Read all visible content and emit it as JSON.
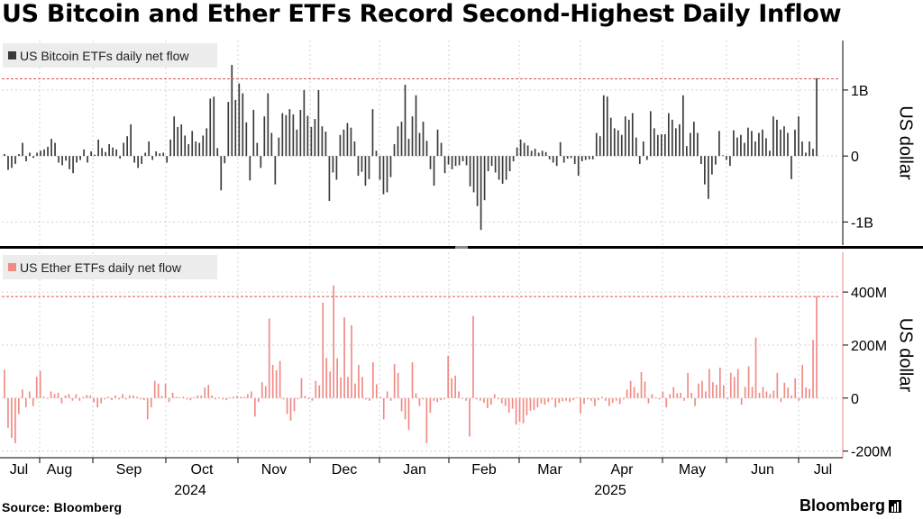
{
  "title": "US Bitcoin and Ether ETFs Record Second-Highest Daily Inflow",
  "source": "Source:  Bloomberg",
  "brand": "Bloomberg",
  "colors": {
    "btc": "#3a3a3a",
    "eth": "#f08a84",
    "ref_line": "#d9534f",
    "legend_bg": "#ececec",
    "grid": "#d0d0d0"
  },
  "chart_data": [
    {
      "type": "bar",
      "legend": "US Bitcoin ETFs daily net flow",
      "ylabel": "US dollar",
      "yticks": [
        {
          "v": 1.0,
          "label": "1B"
        },
        {
          "v": 0,
          "label": "0"
        },
        {
          "v": -1.0,
          "label": "-1B"
        }
      ],
      "ylim": [
        -1.35,
        1.75
      ],
      "unit": "billion USD",
      "reference_line": 1.17,
      "values": [
        0.03,
        -0.21,
        -0.18,
        -0.12,
        0.03,
        0.2,
        -0.08,
        0.05,
        -0.03,
        0.05,
        0.08,
        0.1,
        0.14,
        0.26,
        0.2,
        -0.1,
        -0.14,
        -0.07,
        -0.2,
        -0.26,
        -0.1,
        -0.06,
        0.1,
        -0.1,
        0.07,
        0.02,
        0.25,
        0.12,
        0.06,
        0.18,
        0.13,
        0.1,
        -0.04,
        0.2,
        0.3,
        0.48,
        -0.1,
        -0.18,
        -0.12,
        0.05,
        0.22,
        -0.06,
        0.07,
        0.04,
        0.05,
        -0.1,
        0.25,
        0.6,
        0.44,
        0.48,
        0.31,
        0.18,
        0.38,
        0.22,
        0.2,
        0.31,
        0.42,
        0.87,
        0.9,
        0.12,
        -0.52,
        -0.11,
        0.82,
        1.38,
        0.85,
        1.1,
        0.95,
        0.51,
        -0.37,
        0.7,
        0.2,
        -0.18,
        0.6,
        0.95,
        0.35,
        -0.43,
        0.28,
        0.65,
        0.62,
        0.71,
        0.63,
        0.4,
        0.7,
        1.0,
        0.61,
        0.44,
        0.56,
        1.0,
        0.45,
        0.37,
        -0.68,
        -0.25,
        -0.36,
        0.32,
        0.4,
        0.5,
        0.43,
        0.22,
        -0.3,
        -0.24,
        -0.45,
        -0.35,
        0.71,
        0.08,
        -0.36,
        -0.58,
        -0.55,
        -0.32,
        0.18,
        0.45,
        0.52,
        1.08,
        0.26,
        0.6,
        0.92,
        0.35,
        0.52,
        0.23,
        -0.2,
        -0.45,
        0.4,
        0.2,
        -0.26,
        -0.13,
        -0.2,
        -0.15,
        -0.14,
        -0.08,
        -0.14,
        -0.46,
        -0.55,
        -0.76,
        -1.12,
        -0.67,
        -0.23,
        -0.15,
        -0.25,
        -0.36,
        -0.42,
        -0.36,
        -0.23,
        -0.08,
        0.13,
        0.25,
        0.2,
        0.16,
        0.08,
        0.11,
        0.05,
        0.08,
        0.06,
        -0.05,
        -0.1,
        -0.15,
        0.21,
        -0.1,
        -0.04,
        -0.03,
        -0.12,
        -0.3,
        -0.08,
        -0.06,
        -0.05,
        -0.05,
        0.35,
        0.3,
        0.92,
        0.9,
        0.58,
        0.42,
        0.39,
        0.32,
        0.6,
        0.55,
        0.65,
        0.28,
        -0.12,
        0.22,
        -0.06,
        0.68,
        0.42,
        0.32,
        0.33,
        0.33,
        0.65,
        0.55,
        0.42,
        0.48,
        0.92,
        0.15,
        0.35,
        0.52,
        0.35,
        -0.12,
        -0.43,
        -0.65,
        -0.28,
        -0.13,
        0.38,
        0.01,
        -0.06,
        -0.15,
        0.39,
        0.28,
        0.32,
        0.2,
        0.43,
        0.38,
        0.22,
        0.35,
        0.4,
        0.27,
        0.08,
        0.6,
        0.55,
        0.4,
        0.45,
        0.35,
        -0.35,
        0.4,
        0.6,
        0.22,
        0.05,
        0.22,
        0.11,
        1.18
      ]
    },
    {
      "type": "bar",
      "legend": "US Ether ETFs daily net flow",
      "ylabel": "US dollar",
      "yticks": [
        {
          "v": 400,
          "label": "400M"
        },
        {
          "v": 200,
          "label": "200M"
        },
        {
          "v": 0,
          "label": "0"
        },
        {
          "v": -200,
          "label": "-200M"
        }
      ],
      "ylim": [
        -225,
        550
      ],
      "unit": "million USD",
      "reference_line": 383,
      "values": [
        107,
        -112,
        -150,
        -170,
        -60,
        32,
        -35,
        25,
        -30,
        80,
        102,
        5,
        -3,
        25,
        15,
        20,
        -20,
        10,
        15,
        -10,
        14,
        -10,
        5,
        12,
        10,
        -15,
        -35,
        -20,
        -5,
        5,
        -8,
        10,
        -5,
        15,
        -5,
        10,
        10,
        5,
        -5,
        -8,
        -80,
        -35,
        65,
        55,
        8,
        55,
        -15,
        20,
        5,
        3,
        5,
        -5,
        -8,
        3,
        10,
        10,
        40,
        50,
        10,
        -5,
        3,
        -5,
        -8,
        3,
        5,
        8,
        5,
        5,
        15,
        25,
        -70,
        -15,
        60,
        45,
        300,
        125,
        105,
        140,
        -5,
        -60,
        -85,
        -50,
        -5,
        75,
        8,
        -4,
        -10,
        65,
        48,
        360,
        152,
        100,
        425,
        150,
        78,
        305,
        80,
        275,
        55,
        125,
        80,
        -5,
        -10,
        135,
        52,
        5,
        -80,
        25,
        -10,
        128,
        95,
        -50,
        -80,
        -120,
        135,
        18,
        -30,
        -5,
        -170,
        -55,
        -10,
        -15,
        -8,
        -5,
        160,
        75,
        85,
        25,
        0,
        -10,
        -145,
        310,
        -5,
        -10,
        -18,
        -38,
        -25,
        15,
        -5,
        -20,
        -30,
        -55,
        -40,
        -100,
        -90,
        -95,
        -65,
        -48,
        -45,
        -35,
        -20,
        -25,
        -15,
        -5,
        -35,
        -18,
        -12,
        -10,
        -15,
        -8,
        3,
        -58,
        -22,
        -5,
        -10,
        -30,
        -8,
        5,
        -10,
        -30,
        -18,
        -10,
        -22,
        -5,
        32,
        65,
        42,
        20,
        98,
        62,
        -20,
        15,
        3,
        -5,
        25,
        -35,
        15,
        42,
        18,
        20,
        -10,
        95,
        20,
        -30,
        55,
        65,
        25,
        110,
        60,
        50,
        115,
        48,
        -5,
        95,
        80,
        110,
        -25,
        42,
        120,
        42,
        228,
        20,
        42,
        25,
        15,
        28,
        95,
        -15,
        58,
        40,
        10,
        75,
        -10,
        125,
        40,
        35,
        220,
        385
      ]
    },
    {
      "type": "axis",
      "x_month_labels": [
        "Jul",
        "Aug",
        "Sep",
        "Oct",
        "Nov",
        "Dec",
        "Jan",
        "Feb",
        "Mar",
        "Apr",
        "May",
        "Jun",
        "Jul"
      ],
      "x_year_labels": [
        "2024",
        "2025"
      ]
    }
  ]
}
